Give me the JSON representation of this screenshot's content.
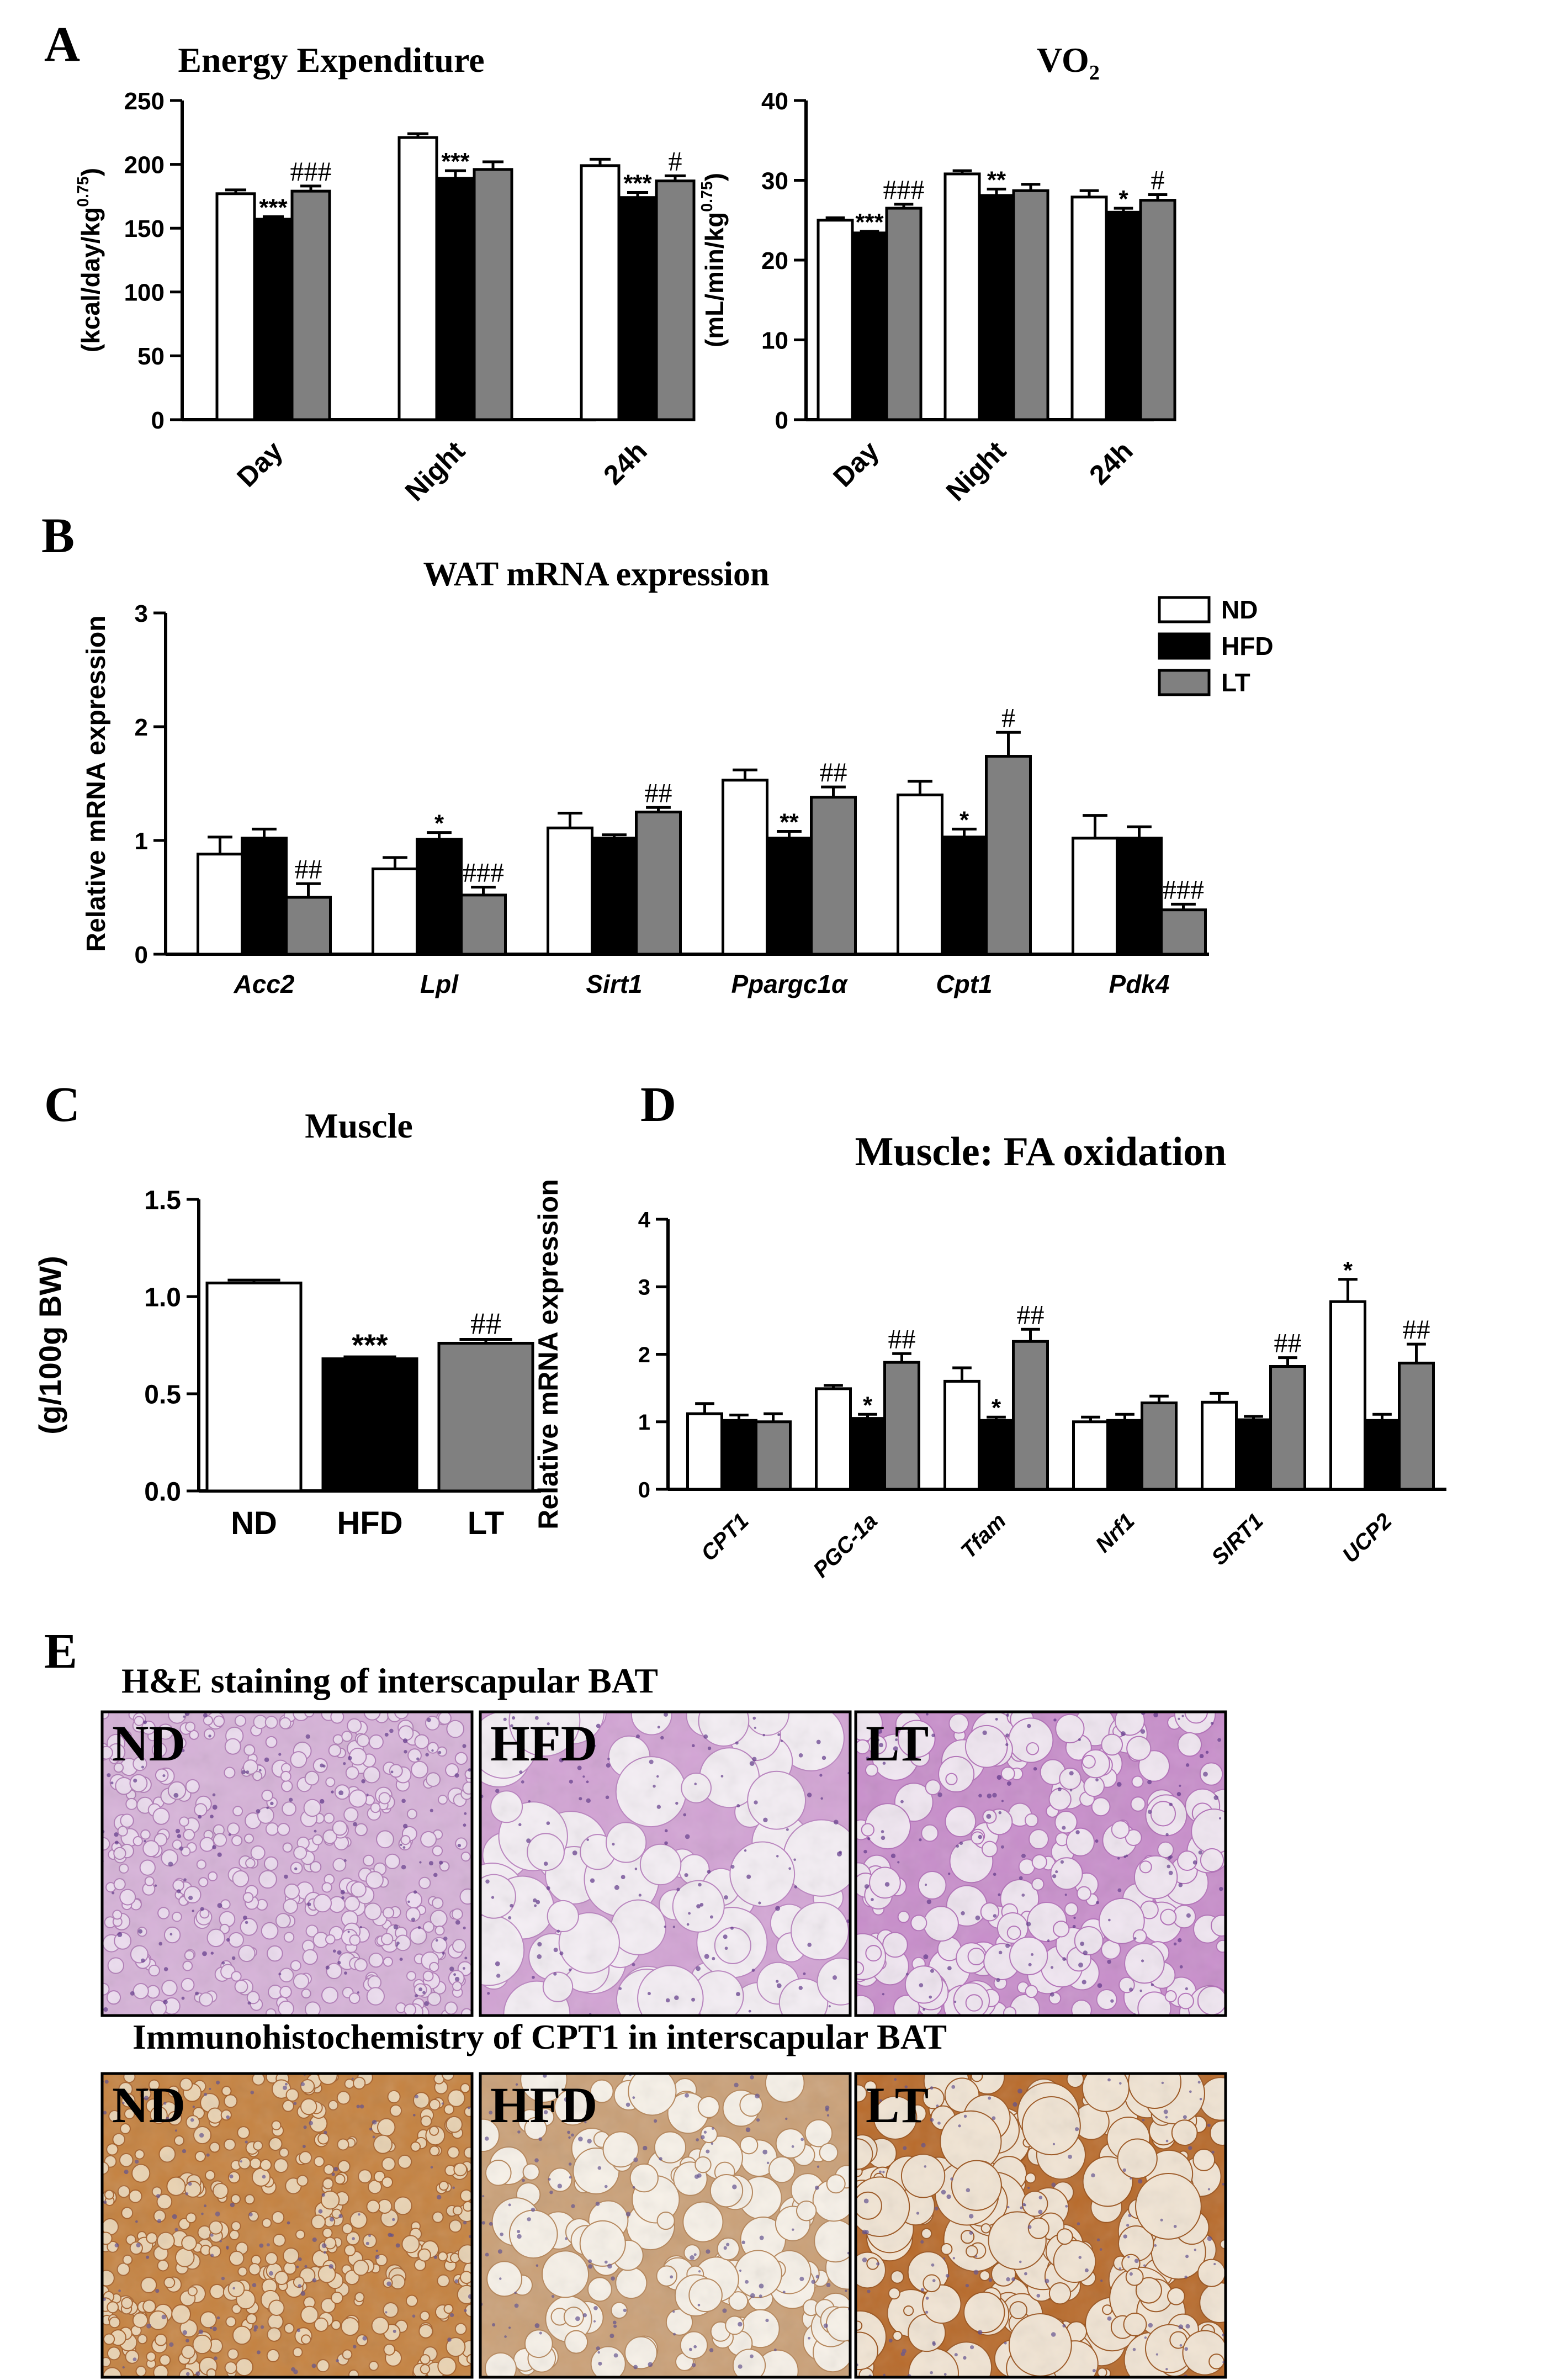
{
  "legend": [
    "ND",
    "HFD",
    "LT"
  ],
  "colors": {
    "ND": "#ffffff",
    "HFD": "#000000",
    "LT": "#808080",
    "axis": "#000000"
  },
  "chart_data": [
    {
      "id": "A1",
      "panel": "A",
      "type": "bar",
      "title": "Energy Expenditure",
      "ylabel": "(kcal/day/kg",
      "ylabel_sup": "0.75",
      "ylabel_end": ")",
      "ylim": [
        0,
        250
      ],
      "yticks": [
        0,
        50,
        100,
        150,
        200,
        250
      ],
      "categories": [
        "Day",
        "Night",
        "24h"
      ],
      "series": [
        {
          "name": "ND",
          "values": [
            177,
            221,
            199
          ],
          "errors": [
            3,
            3,
            5
          ],
          "labels": [
            "",
            "",
            ""
          ]
        },
        {
          "name": "HFD",
          "values": [
            157,
            189,
            174
          ],
          "errors": [
            2,
            6,
            4
          ],
          "labels": [
            "***",
            "***",
            "***"
          ]
        },
        {
          "name": "LT",
          "values": [
            179,
            196,
            187
          ],
          "errors": [
            4,
            6,
            4
          ],
          "labels": [
            "###",
            "",
            "#"
          ]
        }
      ]
    },
    {
      "id": "A2",
      "panel": "",
      "type": "bar",
      "title": "VO",
      "title_sub": "2",
      "ylabel": "(mL/min/kg",
      "ylabel_sup": "0.75",
      "ylabel_end": ")",
      "ylim": [
        0,
        40
      ],
      "yticks": [
        0,
        10,
        20,
        30,
        40
      ],
      "categories": [
        "Day",
        "Night",
        "24h"
      ],
      "series": [
        {
          "name": "ND",
          "values": [
            25.0,
            30.8,
            27.9
          ],
          "errors": [
            0.3,
            0.4,
            0.8
          ],
          "labels": [
            "",
            "",
            ""
          ]
        },
        {
          "name": "HFD",
          "values": [
            23.4,
            28.1,
            26.0
          ],
          "errors": [
            0.2,
            0.8,
            0.5
          ],
          "labels": [
            "***",
            "**",
            "*"
          ]
        },
        {
          "name": "LT",
          "values": [
            26.5,
            28.7,
            27.5
          ],
          "errors": [
            0.5,
            0.8,
            0.7
          ],
          "labels": [
            "###",
            "",
            "#"
          ]
        }
      ]
    },
    {
      "id": "B",
      "panel": "B",
      "type": "bar",
      "title": "WAT mRNA expression",
      "ylabel": "Relative mRNA expression",
      "ylim": [
        0,
        3
      ],
      "yticks": [
        0,
        1,
        2,
        3
      ],
      "categories": [
        "Acc2",
        "Lpl",
        "Sirt1",
        "Ppargc1α",
        "Cpt1",
        "Pdk4"
      ],
      "series": [
        {
          "name": "ND",
          "values": [
            0.88,
            0.75,
            1.11,
            1.53,
            1.4,
            1.02
          ],
          "errors": [
            0.15,
            0.1,
            0.13,
            0.09,
            0.12,
            0.2
          ],
          "labels": [
            "",
            "",
            "",
            "",
            "",
            ""
          ]
        },
        {
          "name": "HFD",
          "values": [
            1.02,
            1.01,
            1.02,
            1.02,
            1.03,
            1.02
          ],
          "errors": [
            0.08,
            0.06,
            0.03,
            0.06,
            0.07,
            0.1
          ],
          "labels": [
            "",
            "*",
            "",
            "**",
            "*",
            ""
          ]
        },
        {
          "name": "LT",
          "values": [
            0.5,
            0.52,
            1.25,
            1.38,
            1.74,
            0.39
          ],
          "errors": [
            0.12,
            0.07,
            0.04,
            0.09,
            0.21,
            0.05
          ],
          "labels": [
            "##",
            "###",
            "##",
            "##",
            "#",
            "###"
          ]
        }
      ]
    },
    {
      "id": "C",
      "panel": "C",
      "type": "bar",
      "title": "Muscle",
      "ylabel": "(g/100g BW)",
      "ylim": [
        0,
        1.5
      ],
      "yticks": [
        "0.0",
        "0.5",
        "1.0",
        "1.5"
      ],
      "categories": [
        "ND",
        "HFD",
        "LT"
      ],
      "values": [
        1.07,
        0.68,
        0.76
      ],
      "errors": [
        0.015,
        0.01,
        0.02
      ],
      "labels": [
        "",
        "***",
        "##"
      ]
    },
    {
      "id": "D",
      "panel": "D",
      "type": "bar",
      "title": "Muscle: FA oxidation",
      "ylabel": "Relative mRNA expression",
      "ylim": [
        0,
        4
      ],
      "yticks": [
        0,
        1,
        2,
        3,
        4
      ],
      "categories": [
        "CPT1",
        "PGC-1a",
        "Tfam",
        "Nrf1",
        "SIRT1",
        "UCP2"
      ],
      "series": [
        {
          "name": "ND",
          "values": [
            1.12,
            1.49,
            1.6,
            1.0,
            1.29,
            2.78
          ],
          "errors": [
            0.15,
            0.05,
            0.2,
            0.07,
            0.13,
            0.33
          ],
          "labels": [
            "",
            "",
            "",
            "",
            "",
            "*"
          ]
        },
        {
          "name": "HFD",
          "values": [
            1.02,
            1.05,
            1.02,
            1.02,
            1.03,
            1.02
          ],
          "errors": [
            0.08,
            0.06,
            0.05,
            0.09,
            0.05,
            0.09
          ],
          "labels": [
            "",
            "*",
            "*",
            "",
            "",
            ""
          ]
        },
        {
          "name": "LT",
          "values": [
            1.0,
            1.88,
            2.19,
            1.28,
            1.82,
            1.87
          ],
          "errors": [
            0.12,
            0.13,
            0.18,
            0.1,
            0.13,
            0.28
          ],
          "labels": [
            "",
            "##",
            "##",
            "",
            "##",
            "##"
          ]
        }
      ]
    }
  ],
  "panel_e": {
    "panel": "E",
    "row1_title": "H&E staining of interscapular BAT",
    "row2_title": "Immunohistochemistry of CPT1 in interscapular BAT",
    "images": [
      {
        "label": "ND",
        "row": 1,
        "style": "he-dense"
      },
      {
        "label": "HFD",
        "row": 1,
        "style": "he-large"
      },
      {
        "label": "LT",
        "row": 1,
        "style": "he-mixed"
      },
      {
        "label": "ND",
        "row": 2,
        "style": "ihc-dense"
      },
      {
        "label": "HFD",
        "row": 2,
        "style": "ihc-large"
      },
      {
        "label": "LT",
        "row": 2,
        "style": "ihc-mixed"
      }
    ]
  }
}
